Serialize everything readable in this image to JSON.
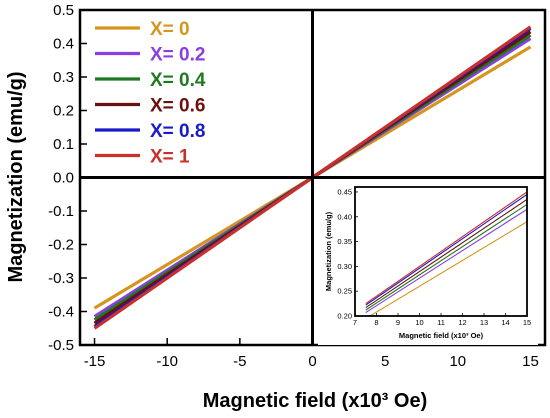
{
  "chart_data": [
    {
      "type": "line",
      "title": "",
      "xlabel": "Magnetic field (x10³ Oe)",
      "ylabel": "Magnetization (emu/g)",
      "xlim": [
        -16,
        16
      ],
      "ylim": [
        -0.5,
        0.5
      ],
      "xticks": [
        -15,
        -10,
        -5,
        0,
        5,
        10,
        15
      ],
      "xtick_labels": [
        "-15",
        "-10",
        "-5",
        "0",
        "5",
        "10",
        "15"
      ],
      "yticks": [
        -0.5,
        -0.4,
        -0.3,
        -0.2,
        -0.1,
        0.0,
        0.1,
        0.2,
        0.3,
        0.4,
        0.5
      ],
      "ytick_labels": [
        "-0.5",
        "-0.4",
        "-0.3",
        "-0.2",
        "-0.1",
        "0.0",
        "0.1",
        "0.2",
        "0.3",
        "0.4",
        "0.5"
      ],
      "legend_position": "top-left",
      "grid": false,
      "crosshair_at_origin": true,
      "series": [
        {
          "name": "X= 0",
          "color": "#d4961e",
          "x": [
            -15,
            0,
            15
          ],
          "y": [
            -0.39,
            0.0,
            0.39
          ]
        },
        {
          "name": "X= 0.2",
          "color": "#8a3fe0",
          "x": [
            -15,
            0,
            15
          ],
          "y": [
            -0.415,
            0.0,
            0.415
          ]
        },
        {
          "name": "X= 0.4",
          "color": "#1f7a1f",
          "x": [
            -15,
            0,
            15
          ],
          "y": [
            -0.425,
            0.0,
            0.425
          ]
        },
        {
          "name": "X= 0.6",
          "color": "#6b0f0f",
          "x": [
            -15,
            0,
            15
          ],
          "y": [
            -0.435,
            0.0,
            0.435
          ]
        },
        {
          "name": "X= 0.8",
          "color": "#1a1acc",
          "x": [
            -15,
            0,
            15
          ],
          "y": [
            -0.445,
            0.0,
            0.445
          ]
        },
        {
          "name": "X= 1",
          "color": "#c8302a",
          "x": [
            -15,
            0,
            15
          ],
          "y": [
            -0.45,
            0.0,
            0.45
          ]
        }
      ]
    },
    {
      "type": "line",
      "title": "",
      "inset": true,
      "xlabel": "Magnetic field (x10³ Oe)",
      "ylabel": "Magnetization (emu/g)",
      "xlim": [
        7,
        15
      ],
      "ylim": [
        0.2,
        0.46
      ],
      "xticks": [
        7,
        8,
        9,
        10,
        11,
        12,
        13,
        14,
        15
      ],
      "xtick_labels": [
        "7",
        "8",
        "9",
        "10",
        "11",
        "12",
        "13",
        "14",
        "15"
      ],
      "yticks": [
        0.2,
        0.25,
        0.3,
        0.35,
        0.4,
        0.45
      ],
      "ytick_labels": [
        "0.20",
        "0.25",
        "0.30",
        "0.35",
        "0.40",
        "0.45"
      ],
      "series": [
        {
          "color": "#d4961e",
          "x": [
            7.5,
            15
          ],
          "y": [
            0.195,
            0.39
          ]
        },
        {
          "color": "#8a3fe0",
          "x": [
            7.5,
            15
          ],
          "y": [
            0.207,
            0.415
          ]
        },
        {
          "color": "#1f7a1f",
          "x": [
            7.5,
            15
          ],
          "y": [
            0.212,
            0.425
          ]
        },
        {
          "color": "#6b0f0f",
          "x": [
            7.5,
            15
          ],
          "y": [
            0.217,
            0.435
          ]
        },
        {
          "color": "#1a1acc",
          "x": [
            7.5,
            15
          ],
          "y": [
            0.222,
            0.445
          ]
        },
        {
          "color": "#c8302a",
          "x": [
            7.5,
            15
          ],
          "y": [
            0.225,
            0.45
          ]
        }
      ]
    }
  ]
}
